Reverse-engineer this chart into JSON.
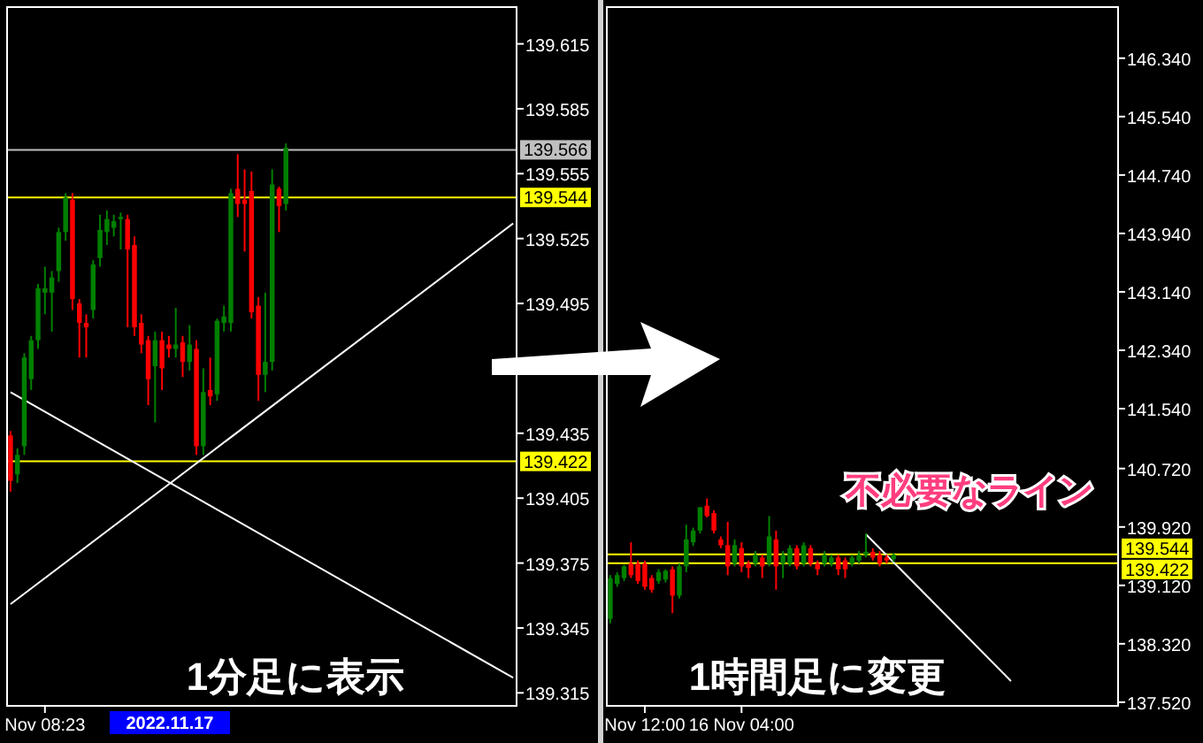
{
  "chart_data": [
    {
      "type": "candlestick",
      "categories": [
        null,
        null,
        null,
        null,
        null,
        "Nov 08:23",
        null,
        null,
        null,
        null,
        null,
        null,
        null,
        null,
        null,
        null,
        null,
        null,
        null,
        null,
        null,
        null,
        null,
        null,
        null,
        null,
        null,
        null,
        null,
        null,
        null,
        null,
        null,
        null,
        null,
        null,
        null,
        null,
        null,
        null,
        null,
        null,
        null,
        null,
        null,
        null,
        null,
        null,
        null,
        null,
        null,
        null,
        null,
        null,
        null,
        null,
        null,
        null,
        null,
        null,
        null,
        null,
        null,
        null,
        null,
        null,
        null,
        null,
        null,
        null,
        null,
        null,
        null,
        null
      ],
      "ohlc": [
        [
          139.434,
          139.436,
          139.408,
          139.413
        ],
        [
          139.416,
          139.428,
          139.412,
          139.425
        ],
        [
          139.429,
          139.472,
          139.425,
          139.47
        ],
        [
          139.46,
          139.48,
          139.455,
          139.478
        ],
        [
          139.478,
          139.504,
          139.474,
          139.502
        ],
        [
          139.5,
          139.512,
          139.49,
          139.502
        ],
        [
          139.5,
          139.51,
          139.482,
          139.507
        ],
        [
          139.51,
          139.53,
          139.505,
          139.528
        ],
        [
          139.528,
          139.546,
          139.524,
          139.544
        ],
        [
          139.543,
          139.546,
          139.492,
          139.497
        ],
        [
          139.495,
          139.497,
          139.47,
          139.486
        ],
        [
          139.486,
          139.49,
          139.47,
          139.484
        ],
        [
          139.492,
          139.515,
          139.488,
          139.513
        ],
        [
          139.516,
          139.536,
          139.512,
          139.529
        ],
        [
          139.528,
          139.538,
          139.522,
          139.534
        ],
        [
          139.53,
          139.536,
          139.526,
          139.533
        ],
        [
          139.534,
          139.537,
          139.52,
          139.535
        ],
        [
          139.534,
          139.536,
          139.484,
          139.52
        ],
        [
          139.522,
          139.526,
          139.48,
          139.484
        ],
        [
          139.486,
          139.49,
          139.472,
          139.476
        ],
        [
          139.478,
          139.48,
          139.448,
          139.46
        ],
        [
          139.466,
          139.482,
          139.44,
          139.478
        ],
        [
          139.478,
          139.482,
          139.455,
          139.465
        ],
        [
          139.476,
          139.48,
          139.47,
          139.474
        ],
        [
          139.474,
          139.493,
          139.47,
          139.476
        ],
        [
          139.477,
          139.48,
          139.461,
          139.468
        ],
        [
          139.468,
          139.485,
          139.464,
          139.476
        ],
        [
          139.474,
          139.478,
          139.425,
          139.429
        ],
        [
          139.429,
          139.465,
          139.425,
          139.454
        ],
        [
          139.455,
          139.47,
          139.448,
          139.452
        ],
        [
          139.453,
          139.488,
          139.45,
          139.487
        ],
        [
          139.486,
          139.494,
          139.482,
          139.489
        ],
        [
          139.486,
          139.548,
          139.482,
          139.546
        ],
        [
          139.548,
          139.564,
          139.535,
          139.541
        ],
        [
          139.543,
          139.557,
          139.519,
          139.541
        ],
        [
          139.547,
          139.556,
          139.488,
          139.491
        ],
        [
          139.494,
          139.498,
          139.45,
          139.462
        ],
        [
          139.462,
          139.5,
          139.454,
          139.468
        ],
        [
          139.468,
          139.557,
          139.464,
          139.55
        ],
        [
          139.548,
          139.549,
          139.528,
          139.54
        ],
        [
          139.541,
          139.569,
          139.538,
          139.567
        ],
        null,
        null,
        null,
        null,
        null,
        null,
        null,
        null,
        null,
        null,
        null,
        null,
        null,
        null,
        null,
        null,
        null,
        null,
        null,
        null,
        null,
        null,
        null,
        null,
        null,
        null,
        null,
        null,
        null,
        null,
        null,
        null,
        null
      ],
      "series": [
        {
          "type": "line",
          "color": "#ffffff",
          "values": [
            139.454,
            null,
            null,
            null,
            null,
            null,
            null,
            null,
            null,
            null,
            null,
            null,
            null,
            null,
            null,
            null,
            null,
            null,
            null,
            null,
            null,
            null,
            null,
            null,
            null,
            null,
            null,
            null,
            null,
            null,
            null,
            null,
            null,
            null,
            null,
            null,
            null,
            null,
            null,
            null,
            null,
            null,
            null,
            null,
            null,
            null,
            null,
            null,
            null,
            null,
            null,
            null,
            null,
            null,
            null,
            null,
            null,
            null,
            null,
            null,
            null,
            null,
            null,
            null,
            null,
            null,
            null,
            null,
            null,
            null,
            null,
            null,
            null,
            139.322
          ]
        },
        {
          "type": "line",
          "color": "#ffffff",
          "values": [
            139.356,
            null,
            null,
            null,
            null,
            null,
            null,
            null,
            null,
            null,
            null,
            null,
            null,
            null,
            null,
            null,
            null,
            null,
            null,
            null,
            null,
            null,
            null,
            null,
            null,
            null,
            null,
            null,
            null,
            null,
            null,
            null,
            null,
            null,
            null,
            null,
            null,
            null,
            null,
            null,
            null,
            null,
            null,
            null,
            null,
            null,
            null,
            null,
            null,
            null,
            null,
            null,
            null,
            null,
            null,
            null,
            null,
            null,
            null,
            null,
            null,
            null,
            null,
            null,
            null,
            null,
            null,
            null,
            null,
            null,
            null,
            null,
            null,
            139.532
          ]
        }
      ],
      "ylim": [
        139.309,
        139.632
      ],
      "yticks": [
        139.615,
        139.585,
        139.555,
        139.525,
        139.495,
        139.435,
        139.405,
        139.375,
        139.345,
        139.315
      ],
      "ref_lines": [
        {
          "axis": "y",
          "value": 139.566,
          "label": "139.566",
          "color": "#c0c0c0"
        },
        {
          "axis": "y",
          "value": 139.544,
          "label": "139.544",
          "color": "#ffff00"
        },
        {
          "axis": "y",
          "value": 139.422,
          "label": "139.422",
          "color": "#ffff00"
        }
      ],
      "grid": false,
      "annotations": [
        "1分足に表示",
        "2022.11.17"
      ]
    },
    {
      "type": "candlestick",
      "categories": [
        null,
        null,
        null,
        null,
        null,
        "Nov 12:00",
        null,
        null,
        null,
        null,
        null,
        null,
        null,
        null,
        null,
        null,
        null,
        null,
        null,
        "16 Nov 04:00",
        null,
        null,
        null,
        null,
        null,
        null,
        null,
        null,
        null,
        null,
        null,
        null,
        null,
        null,
        null,
        null,
        null,
        null,
        null,
        null,
        null,
        null,
        null,
        null,
        null,
        null,
        null,
        null,
        null,
        null,
        null,
        null,
        null,
        null,
        null,
        null,
        null,
        null,
        null,
        null,
        null,
        null,
        null,
        null,
        null,
        null,
        null,
        null,
        null,
        null,
        null,
        null,
        null,
        null
      ],
      "ohlc": [
        [
          138.66,
          139.26,
          138.6,
          139.22
        ],
        [
          139.14,
          139.3,
          139.1,
          139.26
        ],
        [
          139.22,
          139.4,
          139.18,
          139.38
        ],
        [
          139.42,
          139.71,
          139.22,
          139.26
        ],
        [
          139.42,
          139.46,
          139.14,
          139.18
        ],
        [
          139.42,
          139.46,
          139.06,
          139.1
        ],
        [
          139.22,
          139.26,
          139.02,
          139.06
        ],
        [
          139.18,
          139.34,
          139.14,
          139.3
        ],
        [
          139.2,
          139.34,
          139.16,
          139.32
        ],
        [
          139.34,
          139.38,
          138.74,
          138.98
        ],
        [
          138.98,
          139.42,
          138.94,
          139.38
        ],
        [
          139.38,
          139.95,
          139.3,
          139.75
        ],
        [
          139.71,
          139.91,
          139.66,
          139.87
        ],
        [
          139.87,
          140.19,
          139.83,
          140.19
        ],
        [
          140.21,
          140.31,
          140.05,
          140.07
        ],
        [
          140.11,
          140.15,
          139.83,
          139.87
        ],
        [
          139.75,
          139.79,
          139.63,
          139.67
        ],
        [
          139.67,
          139.99,
          139.26,
          139.38
        ],
        [
          139.42,
          139.75,
          139.38,
          139.67
        ],
        [
          139.63,
          139.71,
          139.3,
          139.38
        ],
        [
          139.42,
          139.46,
          139.22,
          139.36
        ],
        [
          139.42,
          139.59,
          139.38,
          139.54
        ],
        [
          139.5,
          139.54,
          139.22,
          139.38
        ],
        [
          139.42,
          140.07,
          139.38,
          139.79
        ],
        [
          139.75,
          139.87,
          139.06,
          139.38
        ],
        [
          139.42,
          139.59,
          139.22,
          139.54
        ],
        [
          139.42,
          139.67,
          139.38,
          139.63
        ],
        [
          139.63,
          139.67,
          139.34,
          139.38
        ],
        [
          139.42,
          139.71,
          139.38,
          139.67
        ],
        [
          139.63,
          139.67,
          139.38,
          139.42
        ],
        [
          139.42,
          139.46,
          139.26,
          139.34
        ],
        [
          139.42,
          139.59,
          139.38,
          139.54
        ],
        [
          139.42,
          139.54,
          139.38,
          139.5
        ],
        [
          139.5,
          139.54,
          139.26,
          139.34
        ],
        [
          139.46,
          139.5,
          139.22,
          139.34
        ],
        [
          139.42,
          139.54,
          139.38,
          139.5
        ],
        [
          139.46,
          139.59,
          139.42,
          139.54
        ],
        [
          139.54,
          139.83,
          139.5,
          139.58
        ],
        [
          139.58,
          139.63,
          139.46,
          139.5
        ],
        [
          139.54,
          139.59,
          139.38,
          139.42
        ],
        [
          139.5,
          139.54,
          139.42,
          139.46
        ],
        [
          139.48,
          139.56,
          139.44,
          139.54
        ],
        null,
        null,
        null,
        null,
        null,
        null,
        null,
        null,
        null,
        null,
        null,
        null,
        null,
        null,
        null,
        null,
        null,
        null,
        null,
        null,
        null,
        null,
        null,
        null,
        null,
        null,
        null,
        null,
        null,
        null,
        null,
        null
      ],
      "series": [
        {
          "type": "line",
          "color": "#ffffff",
          "values": [
            null,
            null,
            null,
            null,
            null,
            null,
            null,
            null,
            null,
            null,
            null,
            null,
            null,
            null,
            null,
            null,
            null,
            null,
            null,
            null,
            null,
            null,
            null,
            null,
            null,
            null,
            null,
            null,
            null,
            null,
            null,
            null,
            null,
            null,
            null,
            null,
            null,
            139.82,
            null,
            null,
            null,
            null,
            null,
            null,
            null,
            null,
            null,
            null,
            null,
            null,
            null,
            null,
            null,
            null,
            null,
            null,
            null,
            null,
            137.81,
            null,
            null,
            null,
            null,
            null,
            null,
            null,
            null,
            null,
            null,
            null,
            null,
            null,
            null,
            null
          ]
        }
      ],
      "ylim": [
        137.47,
        147.04
      ],
      "yticks": [
        {
          "value": 146.34,
          "label": "146.340"
        },
        {
          "value": 145.54,
          "label": "145.540"
        },
        {
          "value": 144.74,
          "label": "144.740"
        },
        {
          "value": 143.94,
          "label": "143.940"
        },
        {
          "value": 143.14,
          "label": "143.140"
        },
        {
          "value": 142.34,
          "label": "142.340"
        },
        {
          "value": 141.54,
          "label": "141.540"
        },
        {
          "value": 140.72,
          "label": "140.720"
        },
        {
          "value": 139.92,
          "label": "139.920"
        },
        {
          "value": 139.12,
          "label": "139.120"
        },
        {
          "value": 138.32,
          "label": "138.320"
        },
        {
          "value": 137.52,
          "label": "137.520"
        }
      ],
      "ref_lines": [
        {
          "axis": "y",
          "value": 139.544,
          "label": "139.544",
          "color": "#ffff00"
        },
        {
          "axis": "y",
          "value": 139.422,
          "label": "139.422",
          "color": "#ffff00"
        }
      ],
      "grid": false,
      "annotations": [
        "不必要なライン",
        "1時間足に変更"
      ]
    }
  ]
}
